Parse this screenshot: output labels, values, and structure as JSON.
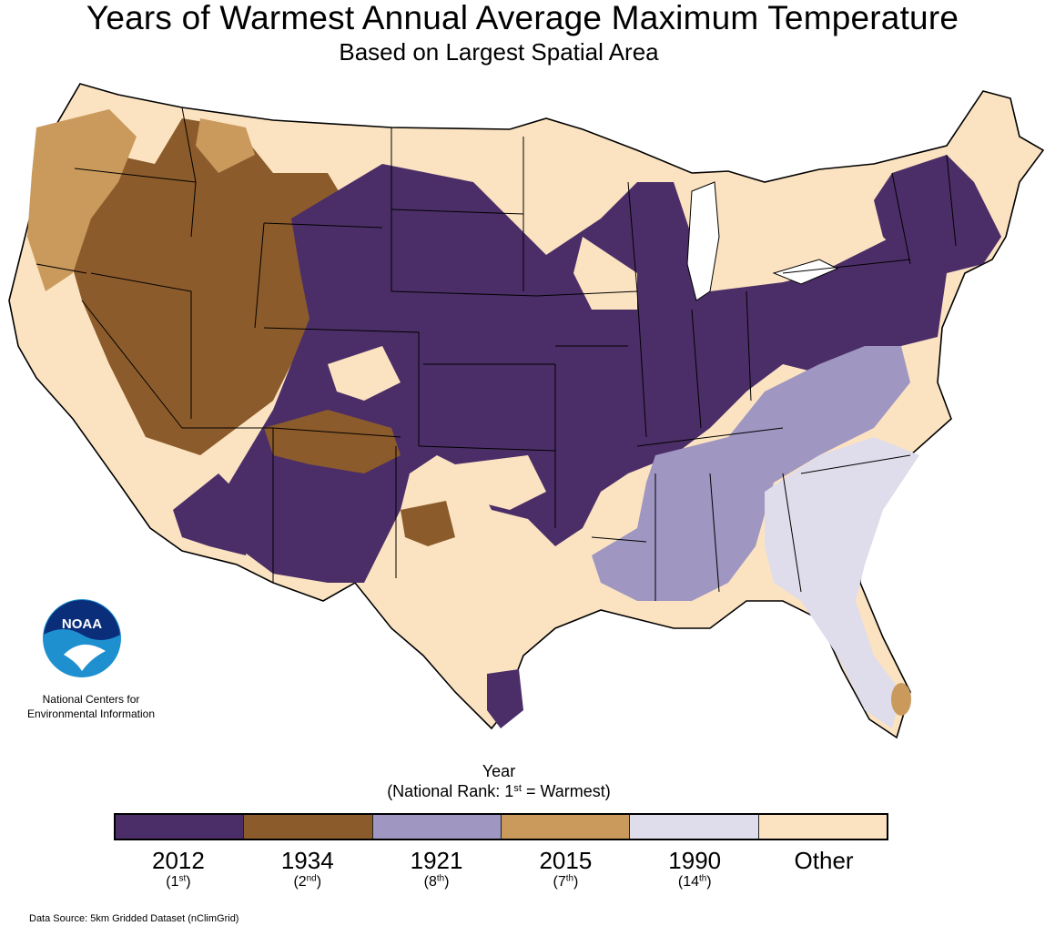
{
  "title": "Years of Warmest Annual Average Maximum Temperature",
  "subtitle": "Based on Largest Spatial Area",
  "logo": {
    "text": "NOAA",
    "icon": "noaa-gull-logo"
  },
  "org": {
    "line1": "National Centers for",
    "line2": "Environmental Information"
  },
  "legend": {
    "title": "Year",
    "note_prefix": "(National Rank: 1",
    "note_sup": "st",
    "note_suffix": " = Warmest)",
    "items": [
      {
        "year": "2012",
        "rank": "1",
        "sup": "st",
        "color": "#4b2e67"
      },
      {
        "year": "1934",
        "rank": "2",
        "sup": "nd",
        "color": "#8c5b2b"
      },
      {
        "year": "1921",
        "rank": "8",
        "sup": "th",
        "color": "#9f96c2"
      },
      {
        "year": "2015",
        "rank": "7",
        "sup": "th",
        "color": "#c99a5c"
      },
      {
        "year": "1990",
        "rank": "14",
        "sup": "th",
        "color": "#dfdceb"
      },
      {
        "year": "Other",
        "rank": "",
        "sup": "",
        "color": "#fbe3c1"
      }
    ]
  },
  "source": "Data Source: 5km Gridded Dataset (nClimGrid)"
}
